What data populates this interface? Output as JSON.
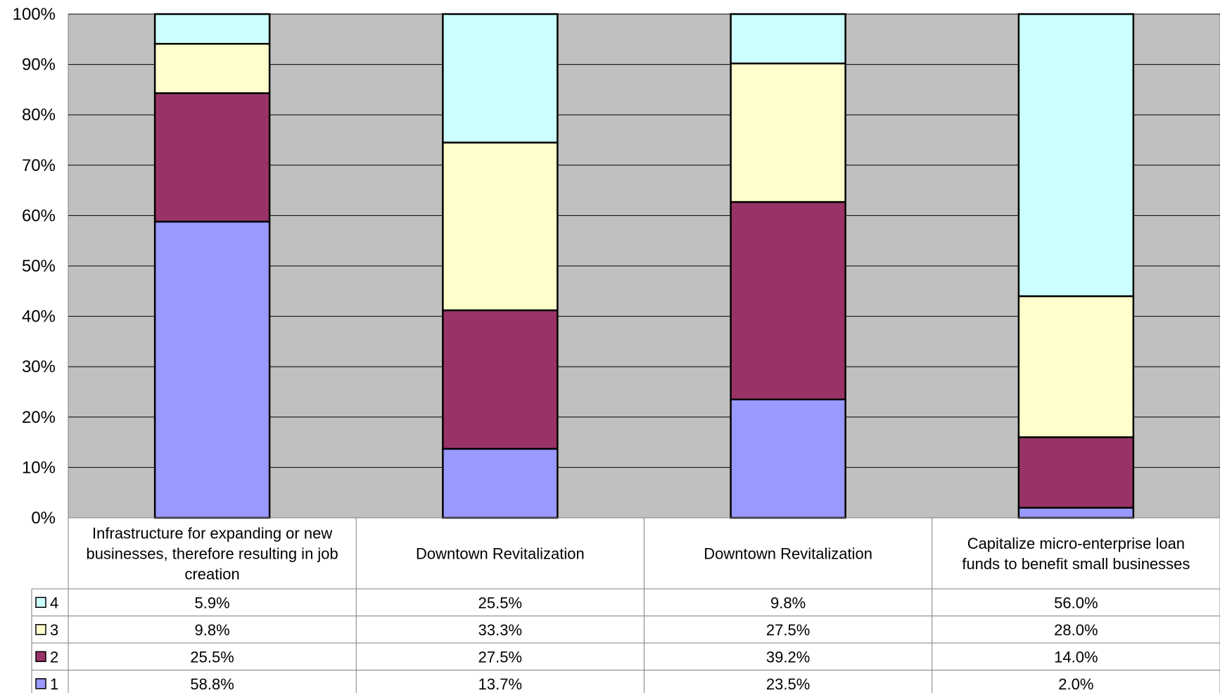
{
  "chart_data": {
    "type": "bar",
    "stacked": true,
    "percent_stacked": true,
    "categories": [
      "Infrastructure for expanding or new businesses, therefore resulting in job creation",
      "Downtown Revitalization",
      "Downtown Revitalization",
      "Capitalize micro-enterprise loan funds to benefit small businesses"
    ],
    "category_lines": [
      [
        "Infrastructure for expanding or new",
        "businesses, therefore resulting in job",
        "creation"
      ],
      [
        "Downtown Revitalization"
      ],
      [
        "Downtown Revitalization"
      ],
      [
        "Capitalize micro-enterprise loan",
        "funds to benefit small businesses"
      ]
    ],
    "series": [
      {
        "name": "1",
        "color": "#9999ff",
        "values": [
          58.8,
          13.7,
          23.5,
          2.0
        ],
        "labels": [
          "58.8%",
          "13.7%",
          "23.5%",
          "2.0%"
        ]
      },
      {
        "name": "2",
        "color": "#993366",
        "values": [
          25.5,
          27.5,
          39.2,
          14.0
        ],
        "labels": [
          "25.5%",
          "27.5%",
          "39.2%",
          "14.0%"
        ]
      },
      {
        "name": "3",
        "color": "#ffffcc",
        "values": [
          9.8,
          33.3,
          27.5,
          28.0
        ],
        "labels": [
          "9.8%",
          "33.3%",
          "27.5%",
          "28.0%"
        ]
      },
      {
        "name": "4",
        "color": "#ccffff",
        "values": [
          5.9,
          25.5,
          9.8,
          56.0
        ],
        "labels": [
          "5.9%",
          "25.5%",
          "9.8%",
          "56.0%"
        ]
      }
    ],
    "table_row_order": [
      "4",
      "3",
      "2",
      "1"
    ],
    "yticks": [
      "0%",
      "10%",
      "20%",
      "30%",
      "40%",
      "50%",
      "60%",
      "70%",
      "80%",
      "90%",
      "100%"
    ],
    "ylim": [
      0,
      100
    ],
    "grid": true,
    "plot_background": "#c0c0c0",
    "legend": "data-table",
    "title": "",
    "xlabel": "",
    "ylabel": ""
  }
}
